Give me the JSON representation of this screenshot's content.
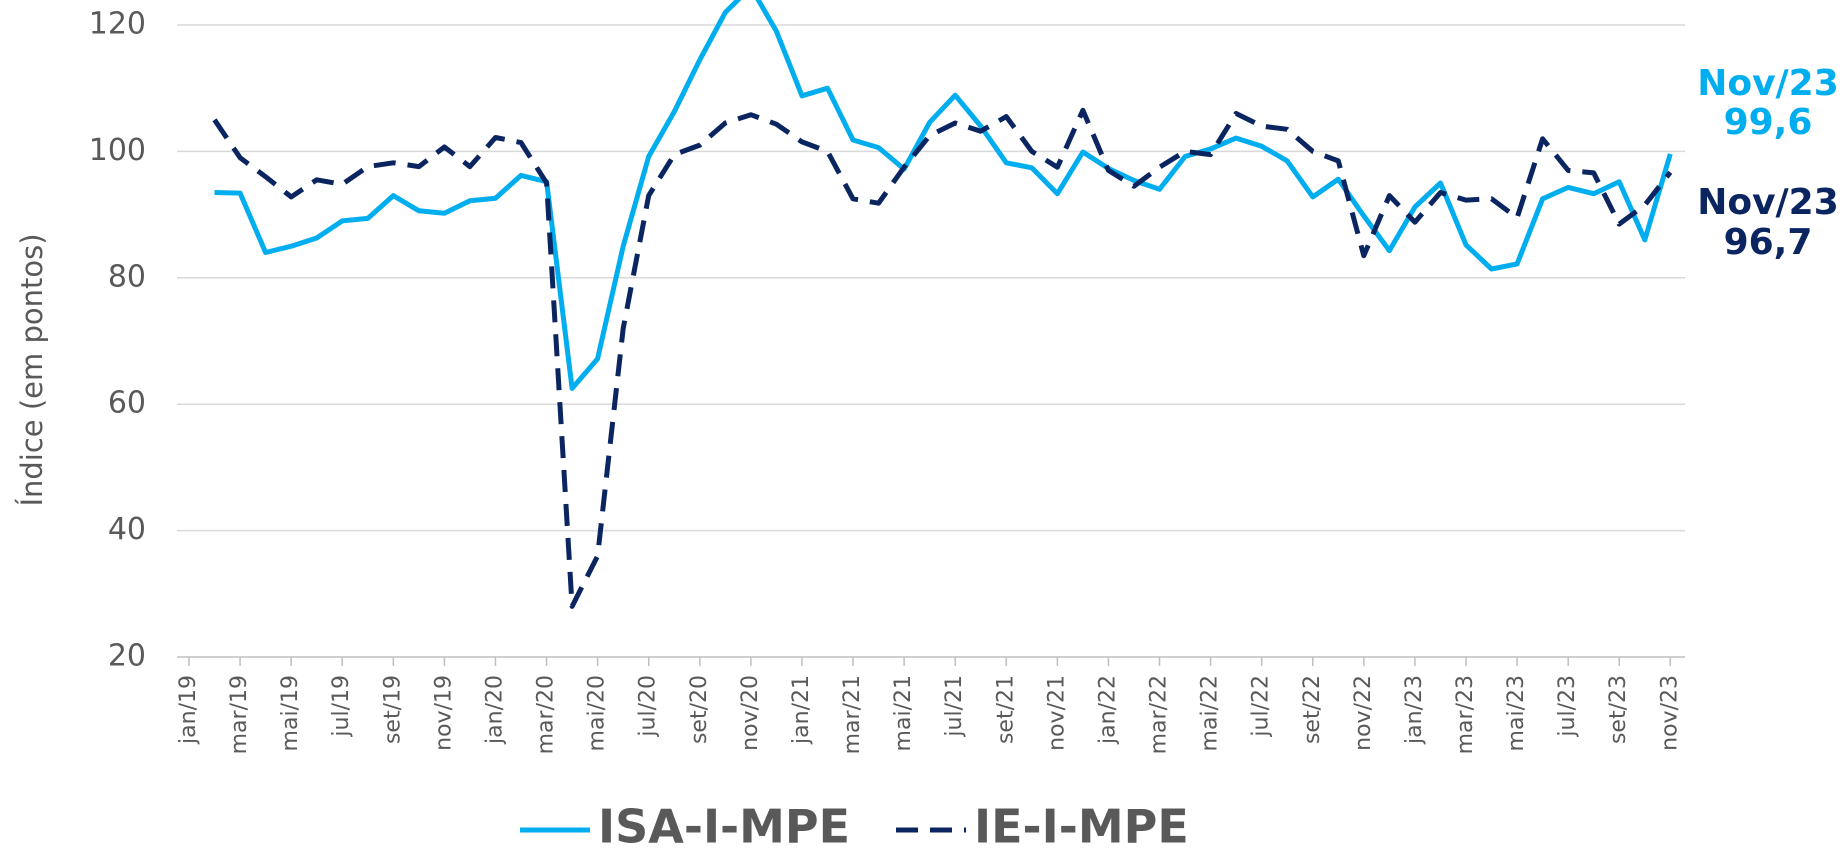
{
  "chart_data": {
    "type": "line",
    "y_label": "Índice (em pontos)",
    "categories": [
      "jan/19",
      null,
      "mar/19",
      null,
      "mai/19",
      null,
      "jul/19",
      null,
      "set/19",
      null,
      "nov/19",
      null,
      "jan/20",
      null,
      "mar/20",
      null,
      "mai/20",
      null,
      "jul/20",
      null,
      "set/20",
      null,
      "nov/20",
      null,
      "jan/21",
      null,
      "mar/21",
      null,
      "mai/21",
      null,
      "jul/21",
      null,
      "set/21",
      null,
      "nov/21",
      null,
      "jan/22",
      null,
      "mar/22",
      null,
      "mai/22",
      null,
      "jul/22",
      null,
      "set/22",
      null,
      "nov/22",
      null,
      "jan/23",
      null,
      "mar/23",
      null,
      "mai/23",
      null,
      "jul/23",
      null,
      "set/23",
      null,
      "nov/23"
    ],
    "series": [
      {
        "name": "ISA-I-MPE",
        "color": "#00aeef",
        "line_style": "solid",
        "values": [
          null,
          93.5,
          93.4,
          84,
          85,
          86.3,
          89,
          89.4,
          93,
          90.6,
          90.2,
          92.2,
          92.6,
          96.2,
          95.2,
          62.5,
          67.2,
          85,
          99.2,
          106.3,
          114.5,
          122,
          126,
          119,
          108.8,
          110,
          101.8,
          100.6,
          97.2,
          104.6,
          108.9,
          104,
          98.2,
          97.4,
          93.3,
          99.9,
          97.3,
          95.4,
          94,
          99.2,
          100.4,
          102.1,
          100.8,
          98.5,
          92.8,
          95.6,
          89.8,
          84.3,
          91.2,
          95,
          85.2,
          81.4,
          82.2,
          92.5,
          94.3,
          93.3,
          95.2,
          86,
          99.6
        ]
      },
      {
        "name": "IE-I-MPE",
        "color": "#0b2560",
        "line_style": "dashed",
        "values": [
          null,
          105,
          99,
          96,
          92.8,
          95.5,
          94.8,
          97.6,
          98.2,
          97.6,
          100.7,
          97.6,
          102.2,
          101.4,
          95,
          28,
          36,
          72,
          93,
          99.5,
          101,
          104.5,
          105.8,
          104.3,
          101.5,
          100,
          92.5,
          91.8,
          97.5,
          102.5,
          104.5,
          103.2,
          105.5,
          100,
          97.5,
          106.5,
          97,
          94.5,
          97.5,
          100,
          99.5,
          106,
          104,
          103.5,
          100,
          98.5,
          83.5,
          93,
          88.8,
          93.5,
          92.3,
          92.5,
          89.5,
          102,
          97,
          96.6,
          88.5,
          91.5,
          96.7
        ]
      }
    ],
    "annotations": [
      {
        "lines": [
          "Nov/23",
          "99,6"
        ],
        "color": "#00aeef"
      },
      {
        "lines": [
          "Nov/23",
          "96,7"
        ],
        "color": "#0b2560"
      }
    ],
    "ylim": [
      20,
      120
    ],
    "yticks": [
      20,
      40,
      60,
      80,
      100,
      120
    ],
    "grid": true,
    "legend": "bottom"
  }
}
